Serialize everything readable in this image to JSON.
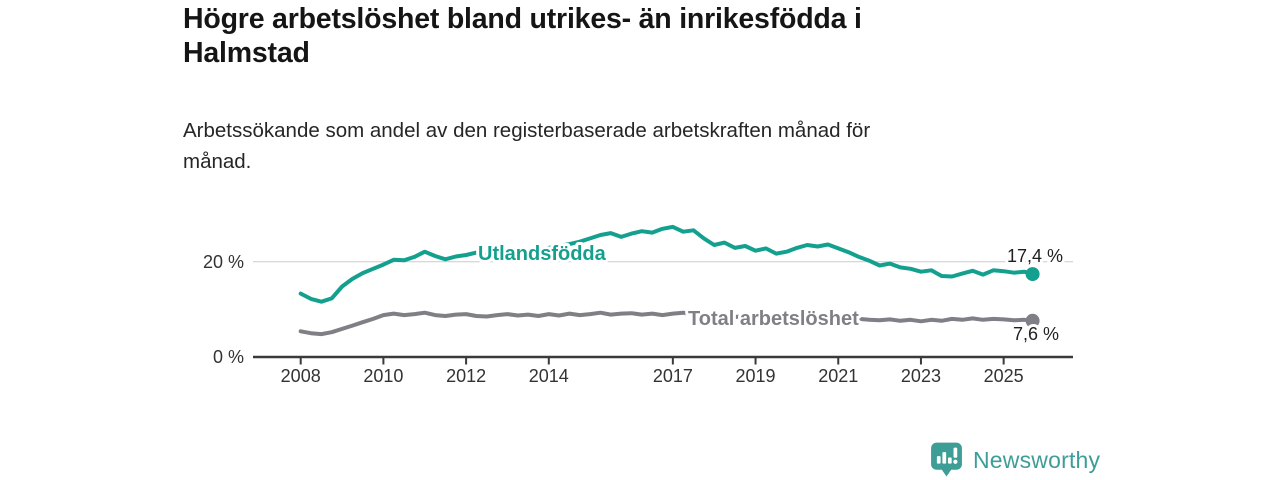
{
  "header": {
    "title_lines": [
      "Högre arbetslöshet bland utrikes- än inrikesfödda i",
      "Halmstad"
    ],
    "subtitle_lines": [
      "Arbetssökande som andel av den registerbaserade arbetskraften månad för",
      "månad."
    ]
  },
  "chart_data": {
    "type": "line",
    "title": "Högre arbetslöshet bland utrikes- än inrikesfödda i Halmstad",
    "subtitle": "Arbetssökande som andel av den registerbaserade arbetskraften månad för månad.",
    "unit": "%",
    "x_ticks": [
      "2008",
      "2010",
      "2012",
      "2014",
      "2017",
      "2019",
      "2021",
      "2023",
      "2025"
    ],
    "y_ticks": [
      {
        "label": "0 %",
        "value": 0
      },
      {
        "label": "20 %",
        "value": 20
      }
    ],
    "x_range": [
      2008,
      2025.7
    ],
    "ylim": [
      0,
      28
    ],
    "gridlines_y": [
      20
    ],
    "legend_position": "inline-labels-on-lines",
    "series": [
      {
        "name": "Utlandsfödda",
        "color": "#14A08F",
        "end_label": "17,4 %",
        "last_value": 17.4,
        "points": [
          [
            2008.0,
            13.3
          ],
          [
            2008.25,
            12.2
          ],
          [
            2008.5,
            11.6
          ],
          [
            2008.75,
            12.3
          ],
          [
            2009.0,
            14.8
          ],
          [
            2009.25,
            16.4
          ],
          [
            2009.5,
            17.6
          ],
          [
            2009.75,
            18.5
          ],
          [
            2010.0,
            19.4
          ],
          [
            2010.25,
            20.4
          ],
          [
            2010.5,
            20.3
          ],
          [
            2010.75,
            21.0
          ],
          [
            2011.0,
            22.1
          ],
          [
            2011.25,
            21.2
          ],
          [
            2011.5,
            20.5
          ],
          [
            2011.75,
            21.1
          ],
          [
            2012.0,
            21.4
          ],
          [
            2012.25,
            21.9
          ],
          [
            2012.5,
            21.3
          ],
          [
            2012.75,
            21.7
          ],
          [
            2013.0,
            22.0
          ],
          [
            2013.25,
            22.4
          ],
          [
            2013.5,
            22.1
          ],
          [
            2013.75,
            22.6
          ],
          [
            2014.0,
            22.9
          ],
          [
            2014.25,
            23.3
          ],
          [
            2014.5,
            23.7
          ],
          [
            2014.75,
            24.2
          ],
          [
            2015.0,
            24.9
          ],
          [
            2015.25,
            25.6
          ],
          [
            2015.5,
            26.0
          ],
          [
            2015.75,
            25.2
          ],
          [
            2016.0,
            25.9
          ],
          [
            2016.25,
            26.4
          ],
          [
            2016.5,
            26.1
          ],
          [
            2016.75,
            26.9
          ],
          [
            2017.0,
            27.3
          ],
          [
            2017.25,
            26.3
          ],
          [
            2017.5,
            26.6
          ],
          [
            2017.75,
            24.9
          ],
          [
            2018.0,
            23.5
          ],
          [
            2018.25,
            24.0
          ],
          [
            2018.5,
            22.9
          ],
          [
            2018.75,
            23.3
          ],
          [
            2019.0,
            22.3
          ],
          [
            2019.25,
            22.8
          ],
          [
            2019.5,
            21.7
          ],
          [
            2019.75,
            22.1
          ],
          [
            2020.0,
            22.9
          ],
          [
            2020.25,
            23.5
          ],
          [
            2020.5,
            23.2
          ],
          [
            2020.75,
            23.6
          ],
          [
            2021.0,
            22.8
          ],
          [
            2021.25,
            22.0
          ],
          [
            2021.5,
            21.0
          ],
          [
            2021.75,
            20.2
          ],
          [
            2022.0,
            19.2
          ],
          [
            2022.25,
            19.6
          ],
          [
            2022.5,
            18.8
          ],
          [
            2022.75,
            18.5
          ],
          [
            2023.0,
            17.9
          ],
          [
            2023.25,
            18.2
          ],
          [
            2023.5,
            17.0
          ],
          [
            2023.75,
            16.9
          ],
          [
            2024.0,
            17.5
          ],
          [
            2024.25,
            18.1
          ],
          [
            2024.5,
            17.3
          ],
          [
            2024.75,
            18.2
          ],
          [
            2025.0,
            18.0
          ],
          [
            2025.25,
            17.7
          ],
          [
            2025.5,
            17.9
          ],
          [
            2025.7,
            17.4
          ]
        ]
      },
      {
        "name": "Total arbetslöshet",
        "color": "#7F7F85",
        "end_label": "7,6 %",
        "last_value": 7.6,
        "points": [
          [
            2008.0,
            5.4
          ],
          [
            2008.25,
            5.0
          ],
          [
            2008.5,
            4.8
          ],
          [
            2008.75,
            5.2
          ],
          [
            2009.0,
            5.9
          ],
          [
            2009.25,
            6.6
          ],
          [
            2009.5,
            7.3
          ],
          [
            2009.75,
            8.0
          ],
          [
            2010.0,
            8.8
          ],
          [
            2010.25,
            9.1
          ],
          [
            2010.5,
            8.8
          ],
          [
            2010.75,
            9.0
          ],
          [
            2011.0,
            9.3
          ],
          [
            2011.25,
            8.8
          ],
          [
            2011.5,
            8.6
          ],
          [
            2011.75,
            8.9
          ],
          [
            2012.0,
            9.0
          ],
          [
            2012.25,
            8.6
          ],
          [
            2012.5,
            8.5
          ],
          [
            2012.75,
            8.8
          ],
          [
            2013.0,
            9.0
          ],
          [
            2013.25,
            8.7
          ],
          [
            2013.5,
            8.9
          ],
          [
            2013.75,
            8.6
          ],
          [
            2014.0,
            9.0
          ],
          [
            2014.25,
            8.7
          ],
          [
            2014.5,
            9.1
          ],
          [
            2014.75,
            8.8
          ],
          [
            2015.0,
            9.0
          ],
          [
            2015.25,
            9.3
          ],
          [
            2015.5,
            8.9
          ],
          [
            2015.75,
            9.1
          ],
          [
            2016.0,
            9.2
          ],
          [
            2016.25,
            8.9
          ],
          [
            2016.5,
            9.1
          ],
          [
            2016.75,
            8.8
          ],
          [
            2017.0,
            9.1
          ],
          [
            2017.25,
            9.3
          ],
          [
            2017.5,
            8.9
          ],
          [
            2017.75,
            8.7
          ],
          [
            2018.0,
            8.6
          ],
          [
            2018.25,
            8.8
          ],
          [
            2018.5,
            8.4
          ],
          [
            2018.75,
            8.6
          ],
          [
            2019.0,
            8.3
          ],
          [
            2019.25,
            8.5
          ],
          [
            2019.5,
            8.2
          ],
          [
            2019.75,
            8.4
          ],
          [
            2020.0,
            8.8
          ],
          [
            2020.25,
            9.1
          ],
          [
            2020.5,
            8.9
          ],
          [
            2020.75,
            8.7
          ],
          [
            2021.0,
            8.5
          ],
          [
            2021.25,
            8.2
          ],
          [
            2021.5,
            8.0
          ],
          [
            2021.75,
            7.8
          ],
          [
            2022.0,
            7.7
          ],
          [
            2022.25,
            7.9
          ],
          [
            2022.5,
            7.6
          ],
          [
            2022.75,
            7.8
          ],
          [
            2023.0,
            7.5
          ],
          [
            2023.25,
            7.8
          ],
          [
            2023.5,
            7.6
          ],
          [
            2023.75,
            8.0
          ],
          [
            2024.0,
            7.8
          ],
          [
            2024.25,
            8.1
          ],
          [
            2024.5,
            7.8
          ],
          [
            2024.75,
            8.0
          ],
          [
            2025.0,
            7.9
          ],
          [
            2025.25,
            7.7
          ],
          [
            2025.5,
            7.8
          ],
          [
            2025.7,
            7.6
          ]
        ]
      }
    ]
  },
  "footer": {
    "brand": "Newsworthy",
    "brand_color": "#3D9D97",
    "logo_icon": "newsworthy-badge-bar-chart-icon"
  }
}
